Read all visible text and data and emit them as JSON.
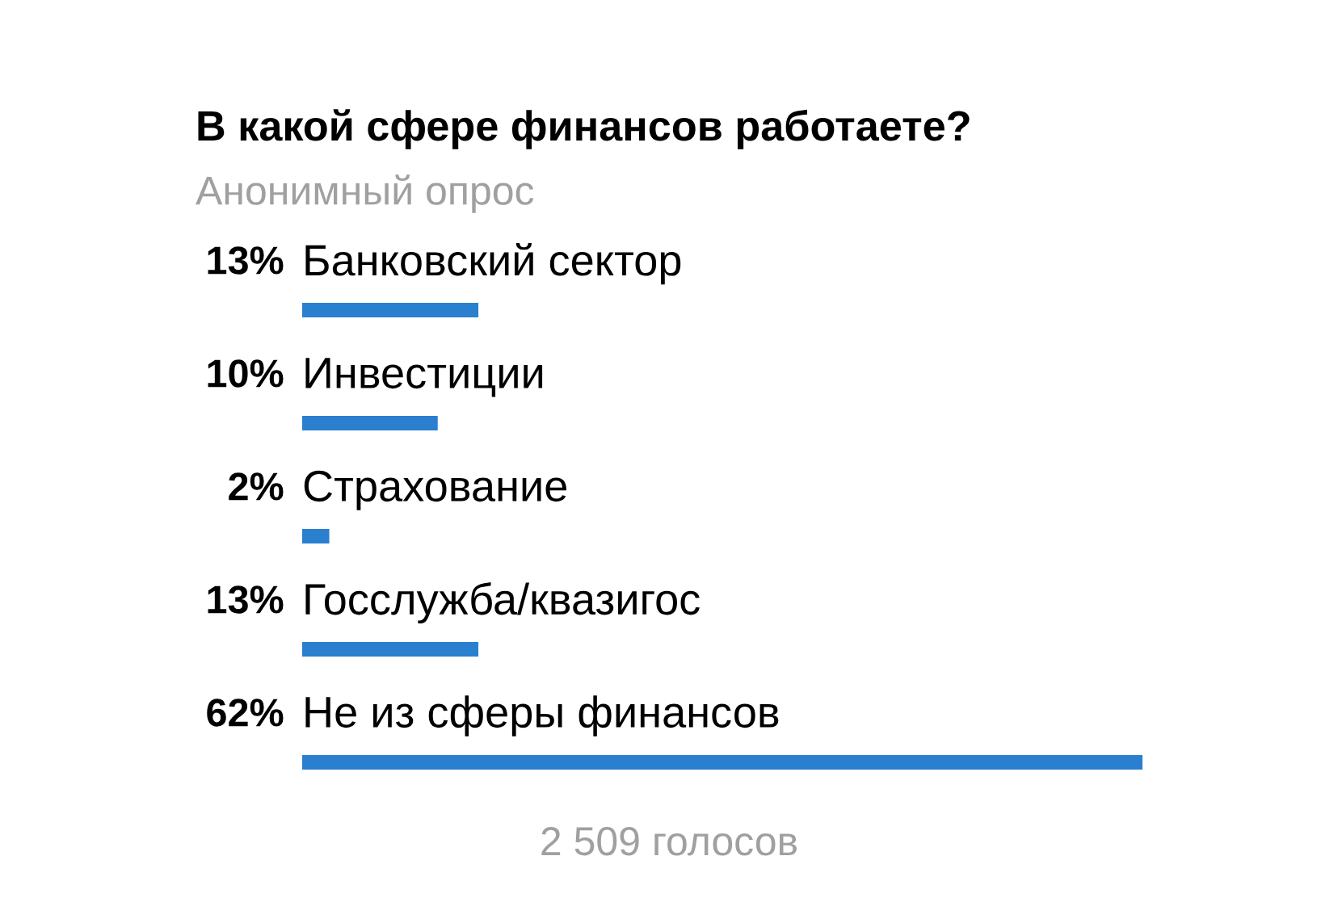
{
  "chart_data": {
    "type": "bar",
    "orientation": "horizontal",
    "title": "В какой сфере финансов работаете?",
    "subtitle": "Анонимный опрос",
    "categories": [
      "Банковский сектор",
      "Инвестиции",
      "Страхование",
      "Госслужба/квазигос",
      "Не из сферы финансов"
    ],
    "values": [
      13,
      10,
      2,
      13,
      62
    ],
    "value_labels": [
      "13%",
      "10%",
      "2%",
      "13%",
      "62%"
    ],
    "color": "#2a7fce",
    "annotations": [
      "2 509 голосов"
    ]
  }
}
